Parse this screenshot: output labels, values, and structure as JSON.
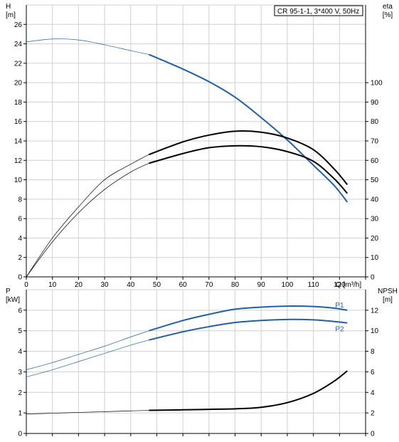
{
  "chart_data": [
    {
      "type": "line",
      "title": "CR 95-1-1, 3*400 V, 50Hz",
      "y_left_label": [
        "H",
        "[m]"
      ],
      "y_right_label": [
        "eta",
        "[%]"
      ],
      "xlabel": "Q [m³/h]",
      "xlim": [
        0,
        130
      ],
      "x_ticks": [
        0,
        10,
        20,
        30,
        40,
        50,
        60,
        70,
        80,
        90,
        100,
        110,
        120
      ],
      "ylim_left": [
        0,
        28
      ],
      "y_ticks_left": [
        0,
        2,
        4,
        6,
        8,
        10,
        12,
        14,
        16,
        18,
        20,
        22,
        24,
        26
      ],
      "ylim_right": [
        0,
        140
      ],
      "y_ticks_right": [
        0,
        10,
        20,
        30,
        40,
        50,
        60,
        70,
        80,
        90,
        100
      ],
      "grid": true,
      "series": [
        {
          "axis": "left",
          "color": "#1f5fa8",
          "x": [
            0,
            10,
            20,
            30,
            40,
            47,
            60,
            70,
            80,
            90,
            100,
            110,
            118,
            123
          ],
          "y": [
            24.2,
            24.5,
            24.4,
            23.9,
            23.3,
            22.9,
            21.4,
            20.1,
            18.5,
            16.4,
            14.1,
            11.5,
            9.4,
            7.7
          ]
        },
        {
          "axis": "right",
          "color": "#000000",
          "x": [
            0,
            10,
            20,
            30,
            40,
            47,
            60,
            70,
            80,
            90,
            100,
            110,
            118,
            123
          ],
          "y": [
            0,
            20,
            36,
            50,
            58,
            63,
            69.5,
            73,
            75,
            74.5,
            71.5,
            65.5,
            55.5,
            47.5
          ]
        },
        {
          "axis": "right",
          "color": "#000000",
          "x": [
            0,
            10,
            20,
            30,
            40,
            47,
            60,
            70,
            80,
            90,
            100,
            110,
            118,
            123
          ],
          "y": [
            0,
            18,
            33,
            45,
            54,
            58.5,
            63.5,
            66.5,
            67.5,
            67,
            64.5,
            59.5,
            50.5,
            43
          ]
        }
      ]
    },
    {
      "type": "line",
      "y_left_label": [
        "P",
        "[kW]"
      ],
      "y_right_label": [
        "NPSH",
        "[m]"
      ],
      "xlim": [
        0,
        130
      ],
      "ylim_left": [
        0,
        7
      ],
      "y_ticks_left": [
        0,
        1,
        2,
        3,
        4,
        5,
        6
      ],
      "ylim_right": [
        0,
        14
      ],
      "y_ticks_right": [
        0,
        2,
        4,
        6,
        8,
        10,
        12
      ],
      "grid": true,
      "series": [
        {
          "name": "P1",
          "axis": "left",
          "color": "#1f5fa8",
          "x": [
            0,
            10,
            20,
            30,
            40,
            47,
            60,
            70,
            80,
            90,
            100,
            110,
            118,
            123
          ],
          "y": [
            3.1,
            3.45,
            3.85,
            4.25,
            4.7,
            5.0,
            5.5,
            5.8,
            6.05,
            6.15,
            6.2,
            6.18,
            6.1,
            6.0
          ]
        },
        {
          "name": "P2",
          "axis": "left",
          "color": "#1f5fa8",
          "x": [
            0,
            10,
            20,
            30,
            40,
            47,
            60,
            70,
            80,
            90,
            100,
            110,
            118,
            123
          ],
          "y": [
            2.75,
            3.1,
            3.5,
            3.9,
            4.3,
            4.55,
            4.95,
            5.2,
            5.4,
            5.5,
            5.55,
            5.53,
            5.45,
            5.38
          ]
        },
        {
          "axis": "right",
          "color": "#000000",
          "x": [
            0,
            10,
            20,
            30,
            40,
            47,
            60,
            70,
            80,
            90,
            100,
            110,
            118,
            123
          ],
          "y": [
            1.9,
            1.97,
            2.05,
            2.12,
            2.2,
            2.25,
            2.3,
            2.35,
            2.4,
            2.55,
            3.0,
            3.9,
            5.1,
            6.1
          ]
        }
      ]
    }
  ]
}
